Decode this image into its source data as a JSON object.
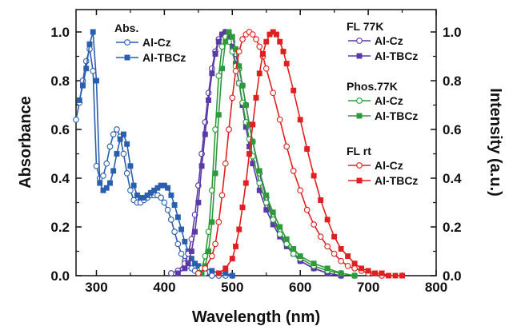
{
  "chart_data": {
    "type": "line",
    "title": "",
    "xlabel": "Wavelength (nm)",
    "ylabel_left": "Absorbance",
    "ylabel_right": "Intensity (a.u.)",
    "xlim": [
      270,
      800
    ],
    "ylim": [
      0,
      1.1
    ],
    "x_ticks": [
      "300",
      "400",
      "500",
      "600",
      "700",
      "800"
    ],
    "y_ticks_left": [
      "0.0",
      "0.2",
      "0.4",
      "0.6",
      "0.8",
      "1.0"
    ],
    "y_ticks_right": [
      "0.0",
      "0.2",
      "0.4",
      "0.6",
      "0.8",
      "1.0"
    ],
    "grid": false,
    "legend_groups": [
      {
        "title": "Abs.",
        "position": "top-left",
        "entries": [
          {
            "label": "Al-Cz",
            "color": "#2a5fb0",
            "marker": "open-circle"
          },
          {
            "label": "Al-TBCz",
            "color": "#2a5fb0",
            "marker": "filled-square"
          }
        ]
      },
      {
        "title": "FL 77K",
        "position": "top-right",
        "entries": [
          {
            "label": "Al-Cz",
            "color": "#5b3aa8",
            "marker": "open-circle"
          },
          {
            "label": "Al-TBCz",
            "color": "#5b3aa8",
            "marker": "filled-square"
          }
        ]
      },
      {
        "title": "Phos.77K",
        "position": "right",
        "entries": [
          {
            "label": "Al-Cz",
            "color": "#2e9a3a",
            "marker": "open-circle"
          },
          {
            "label": "Al-TBCz",
            "color": "#2e9a3a",
            "marker": "filled-square"
          }
        ]
      },
      {
        "title": "FL rt",
        "position": "right",
        "entries": [
          {
            "label": "Al-Cz",
            "color": "#e02020",
            "marker": "open-circle"
          },
          {
            "label": "Al-TBCz",
            "color": "#e02020",
            "marker": "filled-square"
          }
        ]
      }
    ],
    "series": [
      {
        "group": "Abs.",
        "label": "Al-Cz",
        "color": "#2a5fb0",
        "marker": "open-circle",
        "x": [
          270,
          275,
          280,
          285,
          290,
          295,
          300,
          305,
          310,
          315,
          320,
          325,
          330,
          335,
          340,
          345,
          350,
          355,
          360,
          365,
          370,
          375,
          380,
          385,
          390,
          395,
          400,
          405,
          410,
          415,
          420,
          425,
          430,
          435,
          440,
          445,
          450,
          460,
          470,
          480,
          490,
          500
        ],
        "y": [
          0.64,
          0.71,
          0.8,
          0.88,
          0.93,
          0.84,
          0.45,
          0.4,
          0.41,
          0.46,
          0.53,
          0.58,
          0.6,
          0.57,
          0.5,
          0.42,
          0.35,
          0.31,
          0.3,
          0.3,
          0.31,
          0.32,
          0.33,
          0.33,
          0.33,
          0.32,
          0.3,
          0.27,
          0.23,
          0.18,
          0.13,
          0.09,
          0.06,
          0.04,
          0.03,
          0.02,
          0.01,
          0.01,
          0.0,
          0.0,
          0.0,
          0.0
        ]
      },
      {
        "group": "Abs.",
        "label": "Al-TBCz",
        "color": "#2a5fb0",
        "marker": "filled-square",
        "x": [
          275,
          280,
          285,
          290,
          295,
          300,
          305,
          310,
          315,
          320,
          325,
          330,
          335,
          340,
          345,
          350,
          355,
          360,
          365,
          370,
          375,
          380,
          385,
          390,
          395,
          400,
          405,
          410,
          415,
          420,
          425,
          430,
          435,
          440,
          445,
          450,
          460,
          470,
          480,
          490,
          500
        ],
        "y": [
          0.72,
          0.78,
          0.85,
          0.95,
          1.0,
          0.8,
          0.38,
          0.35,
          0.36,
          0.38,
          0.43,
          0.5,
          0.56,
          0.58,
          0.54,
          0.45,
          0.37,
          0.33,
          0.32,
          0.32,
          0.33,
          0.34,
          0.35,
          0.36,
          0.37,
          0.37,
          0.36,
          0.33,
          0.29,
          0.24,
          0.19,
          0.14,
          0.1,
          0.07,
          0.05,
          0.04,
          0.03,
          0.02,
          0.01,
          0.01,
          0.0
        ]
      },
      {
        "group": "FL 77K",
        "label": "Al-Cz",
        "color": "#5b3aa8",
        "marker": "open-circle",
        "x": [
          410,
          420,
          430,
          435,
          440,
          445,
          450,
          455,
          460,
          465,
          470,
          475,
          480,
          485,
          490,
          495,
          500,
          505,
          510,
          515,
          520,
          525,
          530,
          540,
          550,
          560,
          570,
          580,
          590,
          600,
          620,
          640,
          660
        ],
        "y": [
          0.01,
          0.02,
          0.05,
          0.09,
          0.15,
          0.25,
          0.37,
          0.5,
          0.63,
          0.75,
          0.85,
          0.92,
          0.97,
          0.99,
          1.0,
          0.99,
          0.96,
          0.91,
          0.85,
          0.78,
          0.7,
          0.62,
          0.55,
          0.42,
          0.32,
          0.24,
          0.18,
          0.13,
          0.09,
          0.06,
          0.03,
          0.01,
          0.0
        ]
      },
      {
        "group": "FL 77K",
        "label": "Al-TBCz",
        "color": "#5b3aa8",
        "marker": "filled-square",
        "x": [
          420,
          430,
          435,
          440,
          445,
          450,
          455,
          460,
          465,
          470,
          475,
          480,
          485,
          490,
          495,
          500,
          505,
          510,
          515,
          520,
          525,
          530,
          540,
          550,
          560,
          570,
          580,
          590,
          600,
          620,
          640,
          660
        ],
        "y": [
          0.01,
          0.03,
          0.05,
          0.1,
          0.18,
          0.3,
          0.45,
          0.58,
          0.72,
          0.83,
          0.91,
          0.96,
          0.99,
          1.0,
          0.98,
          0.94,
          0.87,
          0.79,
          0.7,
          0.61,
          0.53,
          0.46,
          0.35,
          0.27,
          0.21,
          0.16,
          0.12,
          0.09,
          0.06,
          0.03,
          0.01,
          0.0
        ]
      },
      {
        "group": "Phos.77K",
        "label": "Al-Cz",
        "color": "#2e9a3a",
        "marker": "open-circle",
        "x": [
          450,
          455,
          460,
          465,
          470,
          475,
          480,
          485,
          490,
          495,
          500,
          505,
          510,
          515,
          520,
          525,
          530,
          540,
          550,
          560,
          570,
          580,
          590,
          600,
          620,
          640,
          660,
          680
        ],
        "y": [
          0.01,
          0.03,
          0.08,
          0.18,
          0.35,
          0.6,
          0.82,
          0.94,
          0.98,
          0.96,
          0.92,
          0.86,
          0.79,
          0.71,
          0.63,
          0.56,
          0.49,
          0.38,
          0.3,
          0.23,
          0.17,
          0.13,
          0.09,
          0.07,
          0.04,
          0.02,
          0.01,
          0.0
        ]
      },
      {
        "group": "Phos.77K",
        "label": "Al-TBCz",
        "color": "#2e9a3a",
        "marker": "filled-square",
        "x": [
          455,
          460,
          465,
          470,
          475,
          480,
          485,
          490,
          495,
          500,
          505,
          510,
          515,
          520,
          525,
          530,
          540,
          550,
          560,
          570,
          580,
          590,
          600,
          620,
          640,
          660,
          680
        ],
        "y": [
          0.01,
          0.04,
          0.1,
          0.22,
          0.42,
          0.66,
          0.85,
          0.96,
          1.0,
          0.98,
          0.93,
          0.86,
          0.78,
          0.7,
          0.62,
          0.55,
          0.43,
          0.33,
          0.26,
          0.2,
          0.15,
          0.11,
          0.08,
          0.05,
          0.03,
          0.01,
          0.0
        ]
      },
      {
        "group": "FL rt",
        "label": "Al-Cz",
        "color": "#e02020",
        "marker": "open-circle",
        "x": [
          450,
          460,
          470,
          475,
          480,
          485,
          490,
          495,
          500,
          505,
          510,
          515,
          520,
          525,
          530,
          535,
          540,
          545,
          550,
          560,
          570,
          580,
          590,
          600,
          610,
          620,
          630,
          640,
          650,
          660,
          670,
          680,
          690,
          700,
          720
        ],
        "y": [
          0.01,
          0.03,
          0.08,
          0.13,
          0.22,
          0.33,
          0.46,
          0.6,
          0.73,
          0.84,
          0.92,
          0.97,
          0.99,
          1.0,
          0.99,
          0.97,
          0.94,
          0.9,
          0.85,
          0.75,
          0.64,
          0.53,
          0.43,
          0.35,
          0.27,
          0.21,
          0.16,
          0.12,
          0.09,
          0.06,
          0.04,
          0.03,
          0.02,
          0.01,
          0.0
        ]
      },
      {
        "group": "FL rt",
        "label": "Al-TBCz",
        "color": "#e02020",
        "marker": "filled-square",
        "x": [
          480,
          490,
          500,
          505,
          510,
          515,
          520,
          525,
          530,
          535,
          540,
          545,
          550,
          555,
          560,
          565,
          570,
          575,
          580,
          590,
          600,
          610,
          620,
          630,
          640,
          650,
          660,
          670,
          680,
          690,
          700,
          710,
          720,
          730,
          740,
          750
        ],
        "y": [
          0.01,
          0.03,
          0.07,
          0.12,
          0.19,
          0.28,
          0.38,
          0.5,
          0.62,
          0.73,
          0.83,
          0.91,
          0.96,
          0.99,
          1.0,
          0.99,
          0.96,
          0.92,
          0.87,
          0.76,
          0.64,
          0.52,
          0.41,
          0.31,
          0.23,
          0.16,
          0.11,
          0.08,
          0.05,
          0.03,
          0.02,
          0.01,
          0.01,
          0.0,
          0.0,
          0.0
        ]
      }
    ]
  }
}
